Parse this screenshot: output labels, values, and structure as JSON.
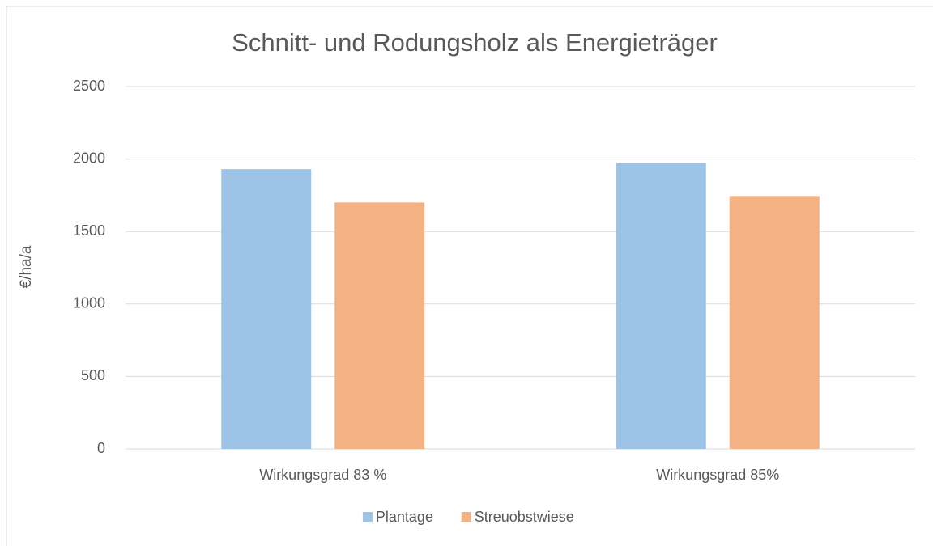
{
  "chart_data": {
    "type": "bar",
    "title": "Schnitt- und Rodungsholz als Energieträger",
    "y_label": "€/ha/a",
    "categories": [
      "Wirkungsgrad 83 %",
      "Wirkungsgrad 85%"
    ],
    "series": [
      {
        "name": "Plantage",
        "color": "#9dc3e6",
        "values": [
          1930,
          1975
        ]
      },
      {
        "name": "Streuobstwiese",
        "color": "#f4b183",
        "values": [
          1700,
          1745
        ]
      }
    ],
    "ylim": [
      0,
      2500
    ],
    "yticks": [
      0,
      500,
      1000,
      1500,
      2000,
      2500
    ],
    "grid": true,
    "legend": "bottom"
  }
}
